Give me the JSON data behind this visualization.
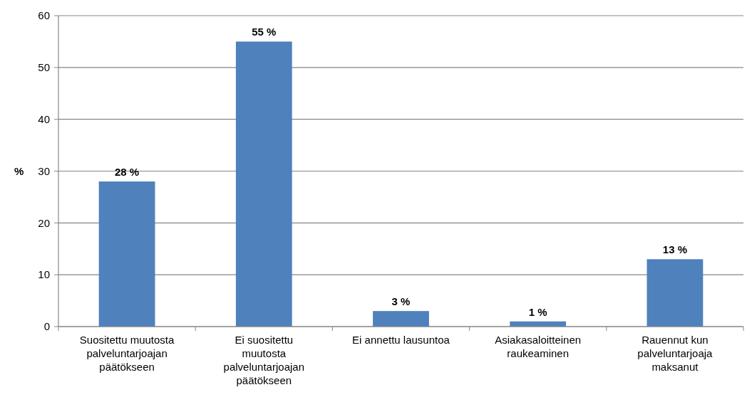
{
  "chart_data": {
    "type": "bar",
    "ylabel": "%",
    "categories": [
      "Suositettu muutosta palveluntarjoajan päätökseen",
      "Ei suositettu muutosta palveluntarjoajan päätökseen",
      "Ei annettu lausuntoa",
      "Asiakasaloitteinen raukeaminen",
      "Rauennut kun palveluntarjoaja maksanut"
    ],
    "values": [
      28,
      55,
      3,
      1,
      13
    ],
    "value_labels": [
      "28 %",
      "55 %",
      "3 %",
      "1 %",
      "13 %"
    ],
    "color": "#4f81bd",
    "ylim": [
      0,
      60
    ],
    "yticks": [
      0,
      10,
      20,
      30,
      40,
      50,
      60
    ],
    "grid": "y"
  }
}
